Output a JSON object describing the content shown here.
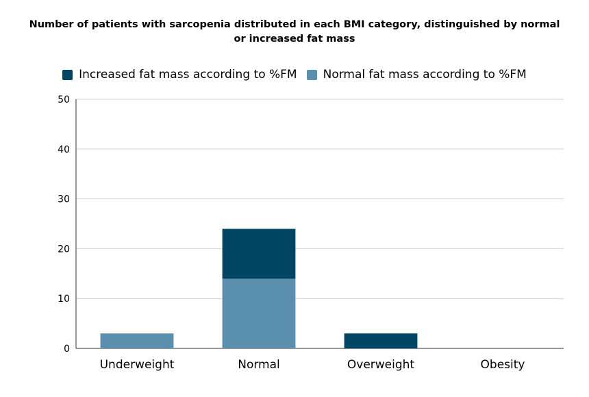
{
  "chart_data": {
    "type": "bar",
    "stacked": true,
    "title": "Number of patients with sarcopenia distributed in each BMI category, distinguished by normal or increased fat mass",
    "categories": [
      "Underweight",
      "Normal",
      "Overweight",
      "Obesity"
    ],
    "series": [
      {
        "name": "Normal fat mass according to %FM",
        "values": [
          3,
          14,
          0,
          0
        ],
        "color": "#5a90ad"
      },
      {
        "name": "Increased fat mass according to %FM",
        "values": [
          0,
          10,
          3,
          0
        ],
        "color": "#014463"
      }
    ],
    "legend_order": [
      1,
      0
    ],
    "legend_position": "top",
    "ylim": [
      0,
      50
    ],
    "yticks": [
      "0",
      "10",
      "20",
      "30",
      "40",
      "50"
    ],
    "grid": true
  }
}
